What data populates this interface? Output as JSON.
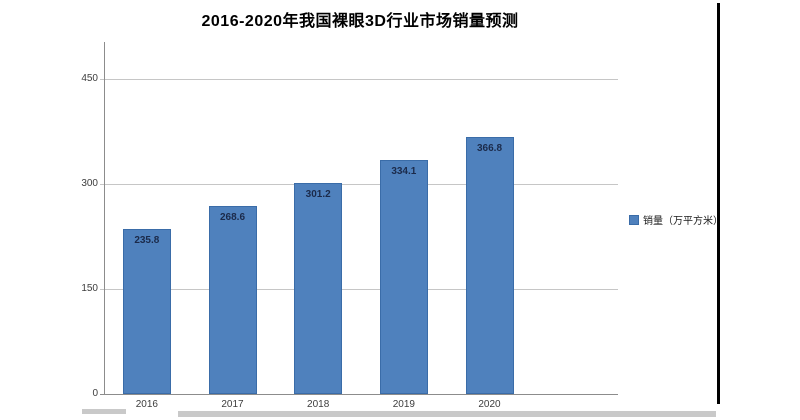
{
  "page": {
    "title": "2016-2020年我国裸眼3D行业市场销量预测"
  },
  "chart_data": {
    "type": "bar",
    "title": "2016-2020年我国裸眼3D行业市场销量预测",
    "categories": [
      "2016",
      "2017",
      "2018",
      "2019",
      "2020"
    ],
    "series": [
      {
        "name": "销量（万平方米）",
        "values": [
          235.8,
          268.6,
          301.2,
          334.1,
          366.8
        ]
      }
    ],
    "data_labels": [
      "235.8",
      "268.6",
      "301.2",
      "334.1",
      "366.8"
    ],
    "xlabel": "",
    "ylabel": "",
    "ylim": [
      0,
      500
    ],
    "yticks": [
      0,
      150,
      300,
      450
    ],
    "grid": "horizontal",
    "legend_position": "right",
    "colors": {
      "bar_fill": "#4F81BD",
      "bar_border": "#3A6CA8",
      "gridline": "#C6C6C6",
      "axis": "#8C8C8C",
      "tick_text": "#3D3D3D",
      "data_label_text": "#1B2A4A"
    }
  },
  "legend": {
    "label": "销量（万平方米）",
    "marker_color": "#4F81BD"
  }
}
